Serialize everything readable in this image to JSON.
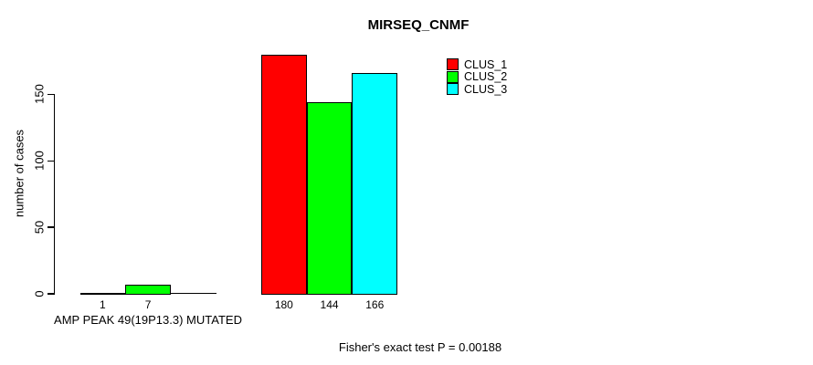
{
  "title": "MIRSEQ_CNMF",
  "y_axis": {
    "label": "number of cases",
    "ticks": [
      0,
      50,
      100,
      150
    ]
  },
  "x_axis": {
    "label": "AMP PEAK 49(19P13.3) MUTATED"
  },
  "footer": {
    "caption": "Fisher's exact test P = 0.00188"
  },
  "legend": {
    "items": [
      {
        "label": "CLUS_1",
        "color": "#FF0000"
      },
      {
        "label": "CLUS_2",
        "color": "#00FF00"
      },
      {
        "label": "CLUS_3",
        "color": "#00FFFF"
      }
    ]
  },
  "chart_data": {
    "type": "bar",
    "title": "MIRSEQ_CNMF",
    "xlabel": "AMP PEAK 49(19P13.3) MUTATED",
    "ylabel": "number of cases",
    "ylim": [
      0,
      180
    ],
    "yticks": [
      0,
      50,
      100,
      150
    ],
    "grid": false,
    "legend_position": "top-right",
    "series_names": [
      "CLUS_1",
      "CLUS_2",
      "CLUS_3"
    ],
    "series_colors": [
      "#FF0000",
      "#00FF00",
      "#00FFFF"
    ],
    "groups": [
      {
        "name": "AMP PEAK 49(19P13.3) MUTATED",
        "values": [
          1,
          7,
          0
        ],
        "value_labels": [
          "1",
          "7",
          ""
        ]
      },
      {
        "name": "",
        "values": [
          180,
          144,
          166
        ],
        "value_labels": [
          "180",
          "144",
          "166"
        ]
      }
    ],
    "annotation": "Fisher's exact test P = 0.00188"
  }
}
